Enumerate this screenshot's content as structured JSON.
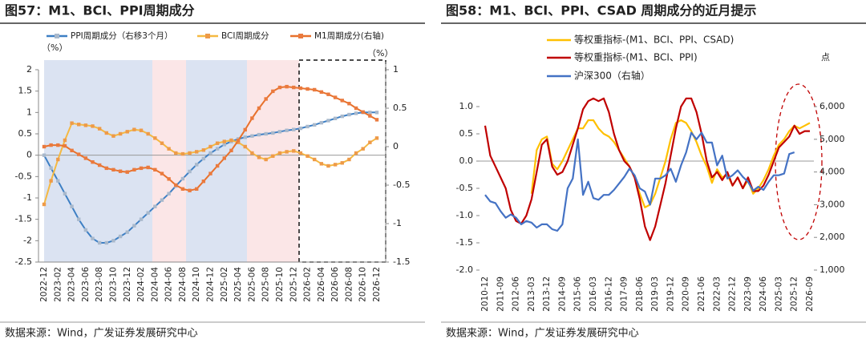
{
  "chart_data": [
    {
      "type": "line",
      "title": "图57：M1、BCI、PPI周期成分",
      "source": "数据来源：Wind，广发证券发展研究中心",
      "y_unit": "（%）",
      "y2_unit": "（%）",
      "markers": true,
      "categories": [
        "2022-12",
        null,
        "2023-02",
        null,
        "2023-04",
        null,
        "2023-06",
        null,
        "2023-08",
        null,
        "2023-10",
        null,
        "2023-12",
        null,
        "2024-02",
        null,
        "2024-04",
        null,
        "2024-06",
        null,
        "2024-08",
        null,
        "2024-10",
        null,
        "2024-12",
        null,
        "2025-02",
        null,
        "2025-04",
        null,
        "2025-06",
        null,
        "2025-08",
        null,
        "2025-10",
        null,
        "2025-12",
        null,
        "2026-02",
        null,
        "2026-04",
        null,
        "2026-06",
        null,
        "2026-08",
        null,
        "2026-10",
        null,
        "2026-12"
      ],
      "ylim": [
        -2.5,
        2
      ],
      "yticks": [
        -2.5,
        -2,
        -1.5,
        -1,
        -0.5,
        0,
        0.5,
        1,
        1.5,
        2
      ],
      "y2lim": [
        -1.5,
        1
      ],
      "y2ticks": [
        -1.5,
        -1,
        -0.5,
        0,
        0.5,
        1
      ],
      "series": [
        {
          "name": "PPI周期成分（右移3个月）",
          "color": "#3d7fc4",
          "marker_color": "#a9b9cc",
          "values": [
            0,
            -0.3,
            -0.6,
            -0.9,
            -1.2,
            -1.5,
            -1.75,
            -1.95,
            -2.05,
            -2.05,
            -2.0,
            -1.9,
            -1.8,
            -1.65,
            -1.5,
            -1.35,
            -1.2,
            -1.05,
            -0.9,
            -0.72,
            -0.55,
            -0.38,
            -0.22,
            -0.08,
            0.05,
            0.15,
            0.25,
            0.32,
            0.38,
            0.42,
            0.45,
            0.48,
            0.5,
            0.52,
            0.55,
            0.58,
            0.6,
            0.63,
            0.67,
            0.71,
            0.76,
            0.81,
            0.86,
            0.91,
            0.95,
            0.98,
            1.0,
            1.0,
            1.0
          ]
        },
        {
          "name": "BCI周期成分",
          "color": "#f5b942",
          "marker_color": "#ee9a48",
          "values": [
            -1.15,
            -0.6,
            -0.1,
            0.35,
            0.75,
            0.72,
            0.7,
            0.68,
            0.62,
            0.52,
            0.45,
            0.5,
            0.55,
            0.6,
            0.58,
            0.5,
            0.4,
            0.28,
            0.15,
            0.05,
            0.03,
            0.05,
            0.08,
            0.12,
            0.2,
            0.28,
            0.32,
            0.35,
            0.3,
            0.2,
            0.05,
            -0.05,
            -0.1,
            -0.02,
            0.05,
            0.08,
            0.1,
            0.05,
            -0.02,
            -0.1,
            -0.2,
            -0.25,
            -0.22,
            -0.18,
            -0.1,
            0.05,
            0.15,
            0.3,
            0.4
          ]
        },
        {
          "name": "M1周期成分(右轴)",
          "color": "#e8712c",
          "marker_color": "#ea7a3e",
          "axis": "y2",
          "values": [
            0,
            0.02,
            0.02,
            0.01,
            -0.05,
            -0.1,
            -0.15,
            -0.2,
            -0.24,
            -0.28,
            -0.3,
            -0.32,
            -0.33,
            -0.3,
            -0.28,
            -0.27,
            -0.3,
            -0.35,
            -0.42,
            -0.5,
            -0.55,
            -0.57,
            -0.55,
            -0.45,
            -0.35,
            -0.25,
            -0.15,
            -0.05,
            0.08,
            0.22,
            0.37,
            0.5,
            0.62,
            0.72,
            0.77,
            0.78,
            0.77,
            0.76,
            0.75,
            0.74,
            0.71,
            0.68,
            0.64,
            0.6,
            0.56,
            0.5,
            0.45,
            0.4,
            0.35
          ]
        }
      ]
    },
    {
      "type": "line",
      "title": "图58：M1、BCI、PPI、CSAD 周期成分的近月提示",
      "source": "数据来源：Wind，广发证券发展研究中心",
      "y2_unit": "点",
      "markers": false,
      "categories": [
        "2010-12",
        null,
        null,
        "2011-09",
        null,
        null,
        "2012-06",
        null,
        null,
        "2013-03",
        null,
        null,
        "2013-12",
        null,
        null,
        "2014-09",
        null,
        null,
        "2015-06",
        null,
        null,
        "2016-03",
        null,
        null,
        "2016-12",
        null,
        null,
        "2017-09",
        null,
        null,
        "2018-06",
        null,
        null,
        "2019-03",
        null,
        null,
        "2019-12",
        null,
        null,
        "2020-09",
        null,
        null,
        "2021-06",
        null,
        null,
        "2022-03",
        null,
        null,
        "2022-12",
        null,
        null,
        "2023-09",
        null,
        null,
        "2024-06",
        null,
        null,
        "2025-03",
        null,
        null,
        "2025-12",
        null,
        null,
        "2026-09"
      ],
      "ylim": [
        -2,
        1
      ],
      "yticks": [
        {
          "value": -2,
          "label": "-2.0"
        },
        {
          "value": -1.5,
          "label": "-1.5"
        },
        {
          "value": -1,
          "label": "-1.0"
        },
        {
          "value": -0.5,
          "label": "-0.5"
        },
        {
          "value": 0,
          "label": "0.0"
        },
        {
          "value": 0.5,
          "label": "0.5"
        },
        {
          "value": 1,
          "label": "1.0"
        }
      ],
      "y2lim": [
        1000,
        6000
      ],
      "y2ticks": [
        {
          "value": 1000,
          "label": "1,000"
        },
        {
          "value": 2000,
          "label": "2,000"
        },
        {
          "value": 3000,
          "label": "3,000"
        },
        {
          "value": 4000,
          "label": "4,000"
        },
        {
          "value": 5000,
          "label": "5,000"
        },
        {
          "value": 6000,
          "label": "6,000"
        }
      ],
      "series": [
        {
          "name": "等权重指标-(M1、BCI、PPI、CSAD)",
          "color": "#ffc000",
          "values": [
            null,
            null,
            null,
            null,
            null,
            null,
            null,
            null,
            null,
            -0.6,
            0.2,
            0.4,
            0.45,
            -0.05,
            -0.15,
            0.0,
            0.2,
            0.4,
            0.6,
            0.6,
            0.75,
            0.75,
            0.6,
            0.5,
            0.45,
            0.35,
            0.2,
            0.05,
            -0.1,
            -0.3,
            -0.6,
            -0.85,
            -0.8,
            -0.6,
            -0.3,
            0.0,
            0.4,
            0.7,
            0.75,
            0.7,
            0.55,
            0.35,
            0.1,
            -0.1,
            -0.4,
            -0.15,
            -0.3,
            -0.25,
            -0.45,
            -0.3,
            -0.5,
            -0.35,
            -0.6,
            -0.5,
            -0.35,
            -0.15,
            0.1,
            0.3,
            0.4,
            0.55,
            0.65,
            0.6,
            0.65,
            0.7
          ]
        },
        {
          "name": "等权重指标-(M1、BCI、PPI)",
          "color": "#c00000",
          "values": [
            0.65,
            0.1,
            -0.1,
            -0.3,
            -0.5,
            -0.9,
            -1.1,
            -1.15,
            -1.0,
            -0.7,
            -0.2,
            0.3,
            0.4,
            -0.1,
            -0.25,
            -0.2,
            0.0,
            0.3,
            0.6,
            0.95,
            1.1,
            1.15,
            1.1,
            1.15,
            0.9,
            0.5,
            0.2,
            0.0,
            -0.1,
            -0.3,
            -0.7,
            -1.2,
            -1.45,
            -1.2,
            -0.8,
            -0.4,
            0.1,
            0.6,
            1.0,
            1.15,
            1.15,
            0.9,
            0.5,
            0.0,
            -0.3,
            -0.2,
            -0.35,
            -0.2,
            -0.45,
            -0.3,
            -0.5,
            -0.3,
            -0.55,
            -0.55,
            -0.45,
            -0.25,
            0.0,
            0.25,
            0.35,
            0.45,
            0.65,
            0.5,
            0.55,
            0.55
          ]
        },
        {
          "name": "沪深300（右轴）",
          "color": "#4472c4",
          "axis": "y2",
          "values": [
            3300,
            3100,
            3050,
            2800,
            2600,
            2700,
            2600,
            2400,
            2500,
            2450,
            2300,
            2400,
            2400,
            2250,
            2200,
            2400,
            3500,
            3800,
            5000,
            3300,
            3700,
            3200,
            3150,
            3300,
            3300,
            3450,
            3650,
            3850,
            4100,
            3900,
            3500,
            3400,
            3000,
            3800,
            3800,
            3900,
            4100,
            3700,
            4200,
            4600,
            5200,
            5000,
            5200,
            4900,
            4900,
            4200,
            4500,
            3800,
            3900,
            4050,
            3850,
            3700,
            3430,
            3550,
            3450,
            3700,
            3900,
            3900,
            3950,
            4550,
            4600,
            null,
            null,
            null
          ]
        }
      ]
    }
  ]
}
